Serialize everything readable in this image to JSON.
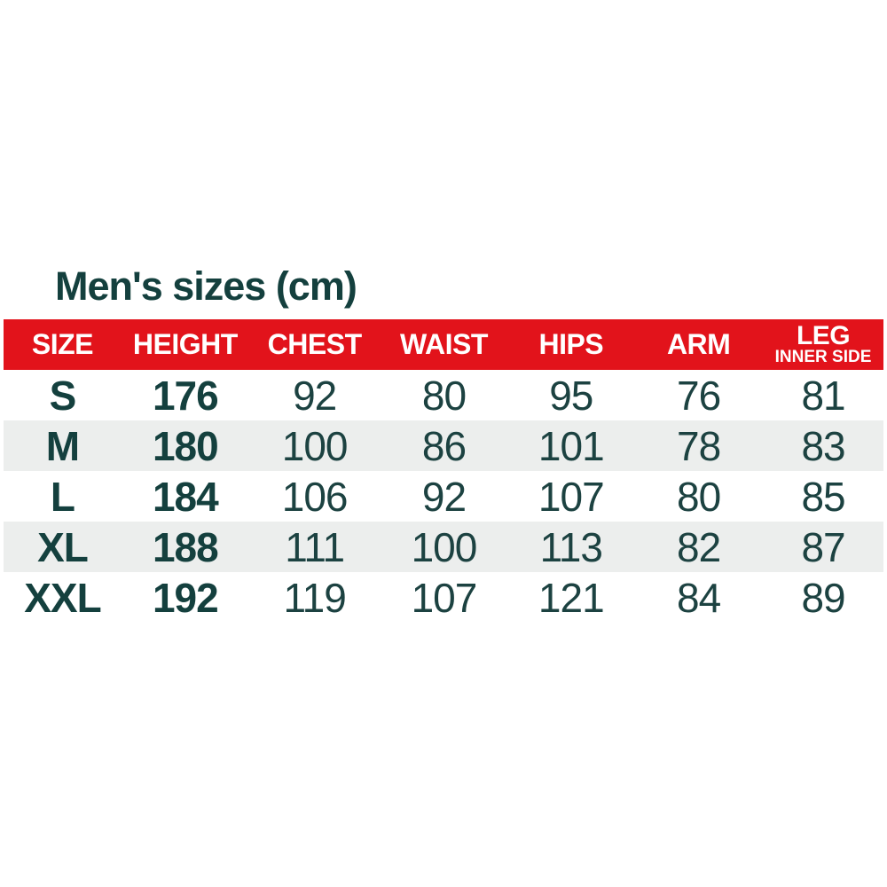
{
  "title": "Men's sizes (cm)",
  "colors": {
    "header_red": "#e2131b",
    "header_text": "#ffffff",
    "text_teal": "#14403e",
    "value_teal": "#1c4241",
    "row_alt_gray": "#eceeed",
    "background": "#ffffff"
  },
  "table": {
    "columns": [
      "SIZE",
      "HEIGHT",
      "CHEST",
      "WAIST",
      "HIPS",
      "ARM",
      "LEG"
    ],
    "leg_subline": "INNER SIDE",
    "rows": [
      [
        "S",
        "176",
        "92",
        "80",
        "95",
        "76",
        "81"
      ],
      [
        "M",
        "180",
        "100",
        "86",
        "101",
        "78",
        "83"
      ],
      [
        "L",
        "184",
        "106",
        "92",
        "107",
        "80",
        "85"
      ],
      [
        "XL",
        "188",
        "111",
        "100",
        "113",
        "82",
        "87"
      ],
      [
        "XXL",
        "192",
        "119",
        "107",
        "121",
        "84",
        "89"
      ]
    ]
  },
  "chart_data": {
    "type": "table",
    "title": "Men's sizes (cm)",
    "columns": [
      "SIZE",
      "HEIGHT",
      "CHEST",
      "WAIST",
      "HIPS",
      "ARM",
      "LEG INNER SIDE"
    ],
    "units": "cm",
    "rows": [
      {
        "size": "S",
        "height": 176,
        "chest": 92,
        "waist": 80,
        "hips": 95,
        "arm": 76,
        "leg_inner_side": 81
      },
      {
        "size": "M",
        "height": 180,
        "chest": 100,
        "waist": 86,
        "hips": 101,
        "arm": 78,
        "leg_inner_side": 83
      },
      {
        "size": "L",
        "height": 184,
        "chest": 106,
        "waist": 92,
        "hips": 107,
        "arm": 80,
        "leg_inner_side": 85
      },
      {
        "size": "XL",
        "height": 188,
        "chest": 111,
        "waist": 100,
        "hips": 113,
        "arm": 82,
        "leg_inner_side": 87
      },
      {
        "size": "XXL",
        "height": 192,
        "chest": 119,
        "waist": 107,
        "hips": 121,
        "arm": 84,
        "leg_inner_side": 89
      }
    ]
  }
}
